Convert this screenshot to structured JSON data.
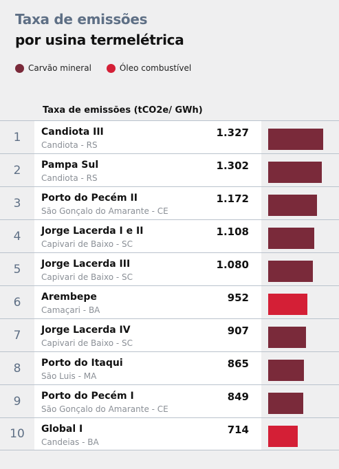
{
  "header": {
    "title_line1": "Taxa de emissões",
    "title_line2": "por usina termelétrica"
  },
  "legend": [
    {
      "label": "Carvão mineral",
      "color": "#7a2a3a"
    },
    {
      "label": "Óleo combustível",
      "color": "#d41f36"
    }
  ],
  "colors": {
    "coal": "#7a2a3a",
    "oil": "#d41f36"
  },
  "chart_data": {
    "type": "bar",
    "orientation": "horizontal",
    "column_header": "Taxa de emissões (tCO2e/ GWh)",
    "xlim": [
      0,
      1327
    ],
    "rows": [
      {
        "rank": "1",
        "name": "Candiota III",
        "location": "Candiota - RS",
        "value": 1327,
        "value_label": "1.327",
        "fuel": "coal"
      },
      {
        "rank": "2",
        "name": "Pampa Sul",
        "location": "Candiota - RS",
        "value": 1302,
        "value_label": "1.302",
        "fuel": "coal"
      },
      {
        "rank": "3",
        "name": "Porto do Pecém II",
        "location": "São Gonçalo do Amarante - CE",
        "value": 1172,
        "value_label": "1.172",
        "fuel": "coal"
      },
      {
        "rank": "4",
        "name": "Jorge Lacerda I e II",
        "location": "Capivari de Baixo - SC",
        "value": 1108,
        "value_label": "1.108",
        "fuel": "coal"
      },
      {
        "rank": "5",
        "name": "Jorge Lacerda III",
        "location": "Capivari de Baixo - SC",
        "value": 1080,
        "value_label": "1.080",
        "fuel": "coal"
      },
      {
        "rank": "6",
        "name": "Arembepe",
        "location": "Camaçari - BA",
        "value": 952,
        "value_label": "952",
        "fuel": "oil"
      },
      {
        "rank": "7",
        "name": "Jorge Lacerda IV",
        "location": "Capivari de Baixo - SC",
        "value": 907,
        "value_label": "907",
        "fuel": "coal"
      },
      {
        "rank": "8",
        "name": "Porto do Itaqui",
        "location": "São Luis - MA",
        "value": 865,
        "value_label": "865",
        "fuel": "coal"
      },
      {
        "rank": "9",
        "name": "Porto do Pecém I",
        "location": "São Gonçalo do Amarante - CE",
        "value": 849,
        "value_label": "849",
        "fuel": "coal"
      },
      {
        "rank": "10",
        "name": "Global I",
        "location": "Candeias - BA",
        "value": 714,
        "value_label": "714",
        "fuel": "oil"
      }
    ]
  }
}
